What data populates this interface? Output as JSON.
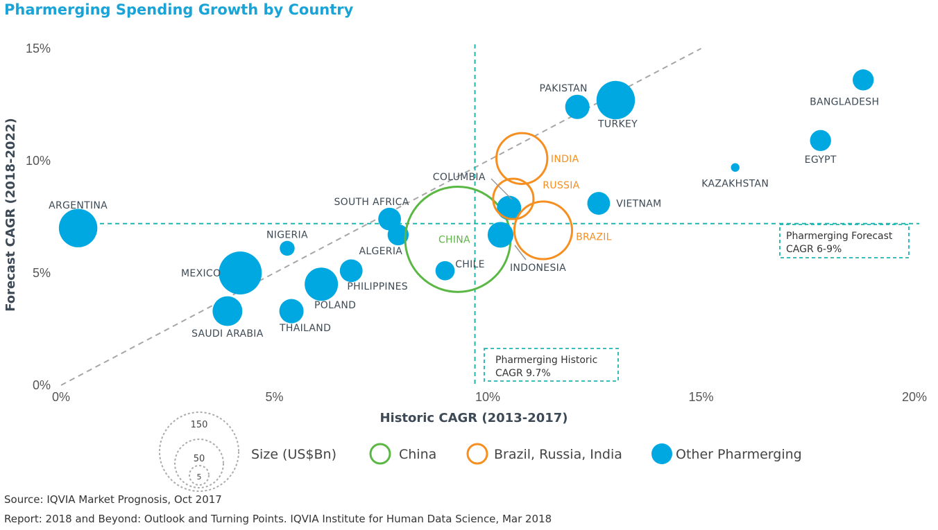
{
  "title": "Pharmerging Spending Growth by Country",
  "source": "Source: IQVIA Market Prognosis, Oct 2017",
  "report": "Report: 2018 and Beyond: Outlook and Turning Points. IQVIA Institute for Human Data Science, Mar 2018",
  "colors": {
    "other": "#00a8e1",
    "china": "#5bb744",
    "bri": "#f68e20",
    "teal": "#1fb5b0",
    "diag": "#a6a6a6",
    "title": "#19a3d6"
  },
  "legend": {
    "size_label": "Size (US$Bn)",
    "size_values": [
      "150",
      "50",
      "5"
    ],
    "china": "China",
    "bri": "Brazil, Russia, India",
    "other": "Other Pharmerging"
  },
  "chart_data": {
    "type": "scatter",
    "xlabel": "Historic CAGR (2013-2017)",
    "ylabel": "Forecast CAGR (2018-2022)",
    "xlim": [
      0,
      20
    ],
    "ylim": [
      0,
      15
    ],
    "xticks": [
      "0%",
      "5%",
      "10%",
      "15%",
      "20%"
    ],
    "yticks": [
      "0%",
      "5%",
      "10%",
      "15%"
    ],
    "reference_lines": {
      "historic": 9.7,
      "forecast": 7.2,
      "historic_label": [
        "Pharmerging Historic",
        "CAGR  9.7%"
      ],
      "forecast_label": [
        "Pharmerging Forecast",
        "CAGR  6-9%"
      ]
    },
    "points": [
      {
        "label": "ARGENTINA",
        "x": 0.4,
        "y": 7.0,
        "size": 20,
        "group": "other"
      },
      {
        "label": "MEXICO",
        "x": 4.2,
        "y": 5.0,
        "size": 25,
        "group": "other"
      },
      {
        "label": "SAUDI ARABIA",
        "x": 3.9,
        "y": 3.3,
        "size": 12,
        "group": "other"
      },
      {
        "label": "NIGERIA",
        "x": 5.3,
        "y": 6.1,
        "size": 3,
        "group": "other"
      },
      {
        "label": "THAILAND",
        "x": 5.4,
        "y": 3.3,
        "size": 8,
        "group": "other"
      },
      {
        "label": "POLAND",
        "x": 6.1,
        "y": 4.5,
        "size": 15,
        "group": "other"
      },
      {
        "label": "PHILIPPINES",
        "x": 6.8,
        "y": 5.1,
        "size": 7,
        "group": "other"
      },
      {
        "label": "SOUTH AFRICA",
        "x": 7.7,
        "y": 7.4,
        "size": 7,
        "group": "other"
      },
      {
        "label": "ALGERIA",
        "x": 7.9,
        "y": 6.7,
        "size": 6,
        "group": "other"
      },
      {
        "label": "CHILE",
        "x": 9.0,
        "y": 5.1,
        "size": 5,
        "group": "other"
      },
      {
        "label": "CHINA",
        "x": 9.3,
        "y": 6.5,
        "size": 150,
        "group": "china"
      },
      {
        "label": "COLUMBIA",
        "x": 10.5,
        "y": 7.9,
        "size": 8,
        "group": "other"
      },
      {
        "label": "INDONESIA",
        "x": 10.3,
        "y": 6.7,
        "size": 9,
        "group": "other"
      },
      {
        "label": "INDIA",
        "x": 10.8,
        "y": 10.1,
        "size": 35,
        "group": "bri"
      },
      {
        "label": "RUSSIA",
        "x": 10.6,
        "y": 8.3,
        "size": 22,
        "group": "bri"
      },
      {
        "label": "BRAZIL",
        "x": 11.3,
        "y": 6.9,
        "size": 45,
        "group": "bri"
      },
      {
        "label": "VIETNAM",
        "x": 12.6,
        "y": 8.1,
        "size": 7,
        "group": "other"
      },
      {
        "label": "PAKISTAN",
        "x": 12.1,
        "y": 12.4,
        "size": 8,
        "group": "other"
      },
      {
        "label": "TURKEY",
        "x": 13.0,
        "y": 12.7,
        "size": 20,
        "group": "other"
      },
      {
        "label": "KAZAKHSTAN",
        "x": 15.8,
        "y": 9.7,
        "size": 1,
        "group": "other"
      },
      {
        "label": "EGYPT",
        "x": 17.8,
        "y": 10.9,
        "size": 6,
        "group": "other"
      },
      {
        "label": "BANGLADESH",
        "x": 18.8,
        "y": 13.6,
        "size": 6,
        "group": "other"
      }
    ]
  }
}
